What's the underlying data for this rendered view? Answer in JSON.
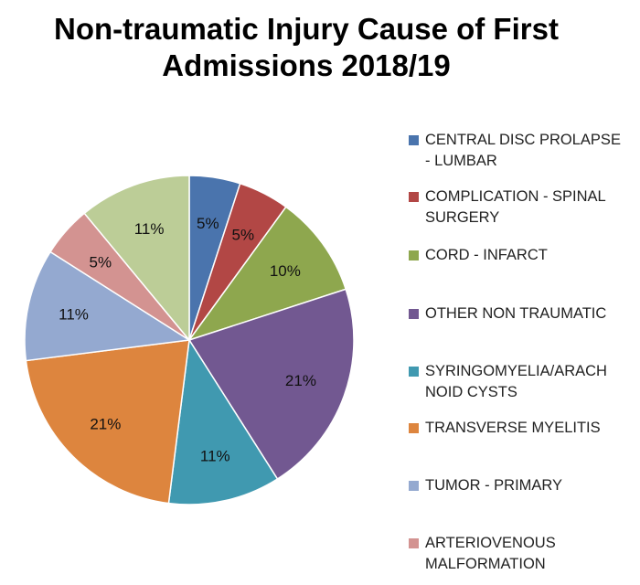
{
  "chart_data": {
    "type": "pie",
    "title": "Non-traumatic Injury Cause of First Admissions 2018/19",
    "title_lines": [
      "Non-traumatic Injury Cause of First",
      "Admissions 2018/19"
    ],
    "slices": [
      {
        "name": "CENTRAL DISC PROLAPSE - LUMBAR",
        "value": 5,
        "label": "5%",
        "color": "#4a74ad"
      },
      {
        "name": "COMPLICATION - SPINAL SURGERY",
        "value": 5,
        "label": "5%",
        "color": "#b24745"
      },
      {
        "name": "CORD - INFARCT",
        "value": 10,
        "label": "10%",
        "color": "#8ea74e"
      },
      {
        "name": "OTHER NON TRAUMATIC",
        "value": 21,
        "label": "21%",
        "color": "#725891"
      },
      {
        "name": "SYRINGOMYELIA/ARACHNOID CYSTS",
        "value": 11,
        "label": "11%",
        "color": "#4099b0"
      },
      {
        "name": "TRANSVERSE MYELITIS",
        "value": 21,
        "label": "21%",
        "color": "#dd853e"
      },
      {
        "name": "TUMOR - PRIMARY",
        "value": 11,
        "label": "11%",
        "color": "#94a9d0"
      },
      {
        "name": "ARTERIOVENOUS MALFORMATION",
        "value": 5,
        "label": "5%",
        "color": "#d39391"
      },
      {
        "name": "",
        "value": 11,
        "label": "11%",
        "color": "#bccd97"
      }
    ],
    "legend_entries": [
      [
        "CENTRAL DISC PROLAPSE",
        "- LUMBAR"
      ],
      [
        "COMPLICATION - SPINAL",
        "SURGERY"
      ],
      [
        "CORD - INFARCT"
      ],
      [
        "OTHER NON TRAUMATIC"
      ],
      [
        "SYRINGOMYELIA/ARACH",
        "NOID CYSTS"
      ],
      [
        "TRANSVERSE MYELITIS"
      ],
      [
        "TUMOR - PRIMARY"
      ],
      [
        "ARTERIOVENOUS",
        "MALFORMATION"
      ]
    ],
    "legend_position": "right"
  }
}
